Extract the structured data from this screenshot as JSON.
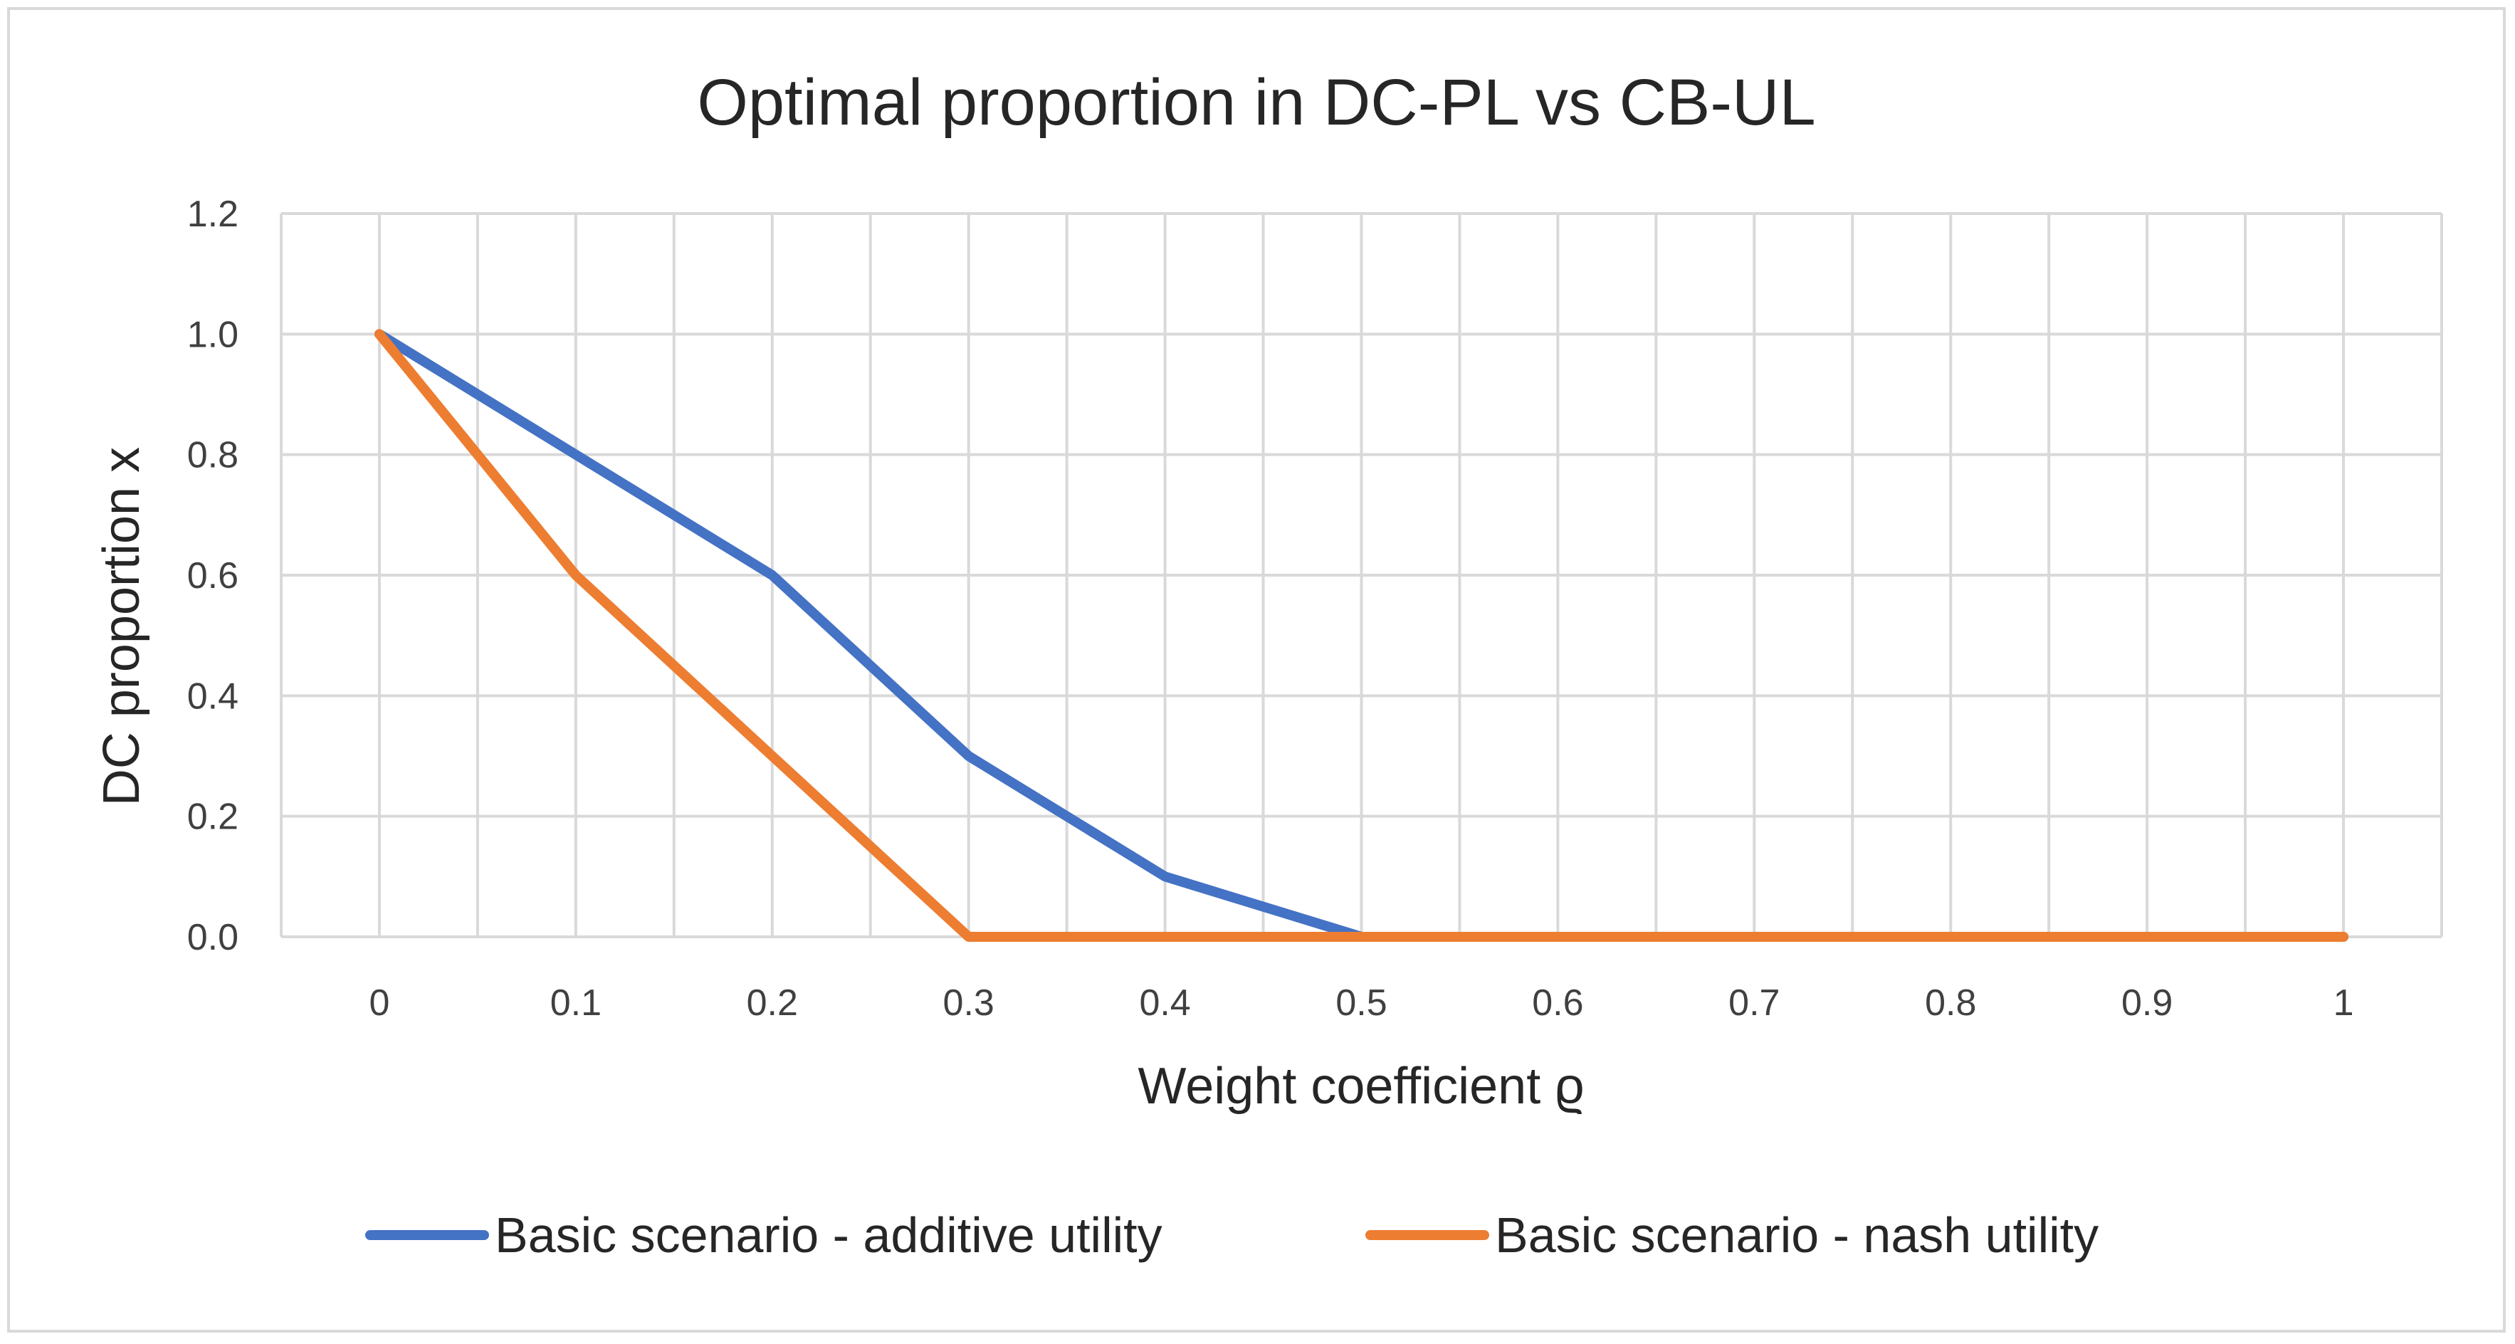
{
  "chart_data": {
    "type": "line",
    "title": "Optimal proportion in DC-PL vs CB-UL",
    "xlabel": "Weight coefficient ϱ",
    "ylabel": "DC proportion x",
    "categories": [
      "0",
      "0.1",
      "0.2",
      "0.3",
      "0.4",
      "0.5",
      "0.6",
      "0.7",
      "0.8",
      "0.9",
      "1"
    ],
    "x": [
      0,
      0.1,
      0.2,
      0.3,
      0.4,
      0.5,
      0.6,
      0.7,
      0.8,
      0.9,
      1
    ],
    "ylim": [
      0,
      1.2
    ],
    "yticks": [
      0,
      0.2,
      0.4,
      0.6,
      0.8,
      1.0,
      1.2
    ],
    "ytick_labels": [
      "0.0",
      "0.2",
      "0.4",
      "0.6",
      "0.8",
      "1.0",
      "1.2"
    ],
    "grid": true,
    "legend_position": "bottom",
    "series": [
      {
        "name": "Basic scenario - additive utility",
        "color": "#4472c4",
        "values": [
          1.0,
          0.8,
          0.6,
          0.3,
          0.1,
          0.0,
          0.0,
          0.0,
          0.0,
          0.0,
          0.0
        ]
      },
      {
        "name": "Basic scenario - nash utility",
        "color": "#ed7d31",
        "values": [
          1.0,
          0.6,
          0.3,
          0.0,
          0.0,
          0.0,
          0.0,
          0.0,
          0.0,
          0.0,
          0.0
        ]
      }
    ]
  }
}
